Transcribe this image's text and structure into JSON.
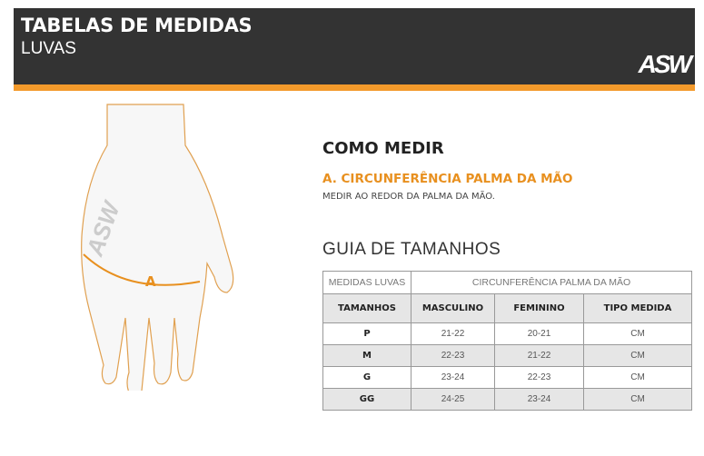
{
  "header": {
    "title": "TABELAS DE MEDIDAS",
    "subtitle": "LUVAS",
    "logo": "ASW",
    "accent": "#f39a2b",
    "background": "#333333"
  },
  "illustration": {
    "marker_label": "A",
    "glove_logo": "ASW"
  },
  "how_to": {
    "title": "COMO MEDIR",
    "measure": "A. CIRCUNFERÊNCIA PALMA DA MÃO",
    "description": "MEDIR AO REDOR DA PALMA DA MÃO."
  },
  "guide": {
    "title": "GUIA DE TAMANHOS"
  },
  "table": {
    "top_left": "MEDIDAS LUVAS",
    "top_right": "CIRCUNFERÊNCIA PALMA DA MÃO",
    "columns": [
      "TAMANHOS",
      "MASCULINO",
      "FEMININO",
      "TIPO MEDIDA"
    ],
    "rows": [
      [
        "P",
        "21-22",
        "20-21",
        "CM"
      ],
      [
        "M",
        "22-23",
        "21-22",
        "CM"
      ],
      [
        "G",
        "23-24",
        "22-23",
        "CM"
      ],
      [
        "GG",
        "24-25",
        "23-24",
        "CM"
      ]
    ]
  }
}
